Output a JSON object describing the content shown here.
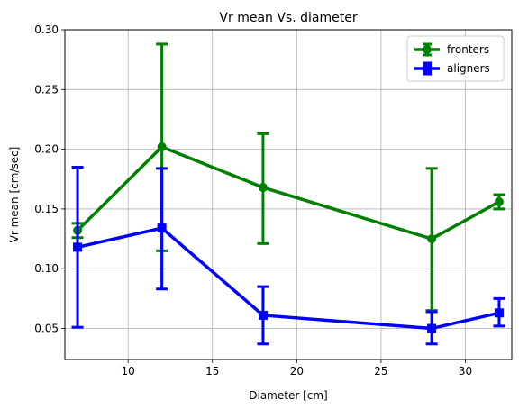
{
  "chart_data": {
    "type": "line",
    "title": "Vr mean Vs. diameter",
    "xlabel": "Diameter [cm]",
    "ylabel": "Vr mean [cm/sec]",
    "xlim": [
      6.25,
      32.75
    ],
    "ylim": [
      0.024,
      0.3
    ],
    "xticks": [
      10,
      15,
      20,
      25,
      30
    ],
    "yticks": [
      0.05,
      0.1,
      0.15,
      0.2,
      0.25,
      0.3
    ],
    "xtick_labels": [
      "10",
      "15",
      "20",
      "25",
      "30"
    ],
    "ytick_labels": [
      "0.05",
      "0.10",
      "0.15",
      "0.20",
      "0.25",
      "0.30"
    ],
    "grid": true,
    "legend_position": "top-right",
    "x": [
      7,
      12,
      18,
      28,
      32
    ],
    "series": [
      {
        "name": "fronters",
        "color": "#008000",
        "marker": "circle",
        "values": [
          0.132,
          0.202,
          0.168,
          0.125,
          0.156
        ],
        "error_low": [
          0.126,
          0.115,
          0.121,
          0.065,
          0.15
        ],
        "error_high": [
          0.138,
          0.288,
          0.213,
          0.184,
          0.162
        ]
      },
      {
        "name": "aligners",
        "color": "#0000ff",
        "marker": "square",
        "values": [
          0.118,
          0.134,
          0.061,
          0.05,
          0.063
        ],
        "error_low": [
          0.051,
          0.083,
          0.037,
          0.037,
          0.052
        ],
        "error_high": [
          0.185,
          0.184,
          0.085,
          0.064,
          0.075
        ]
      }
    ]
  }
}
